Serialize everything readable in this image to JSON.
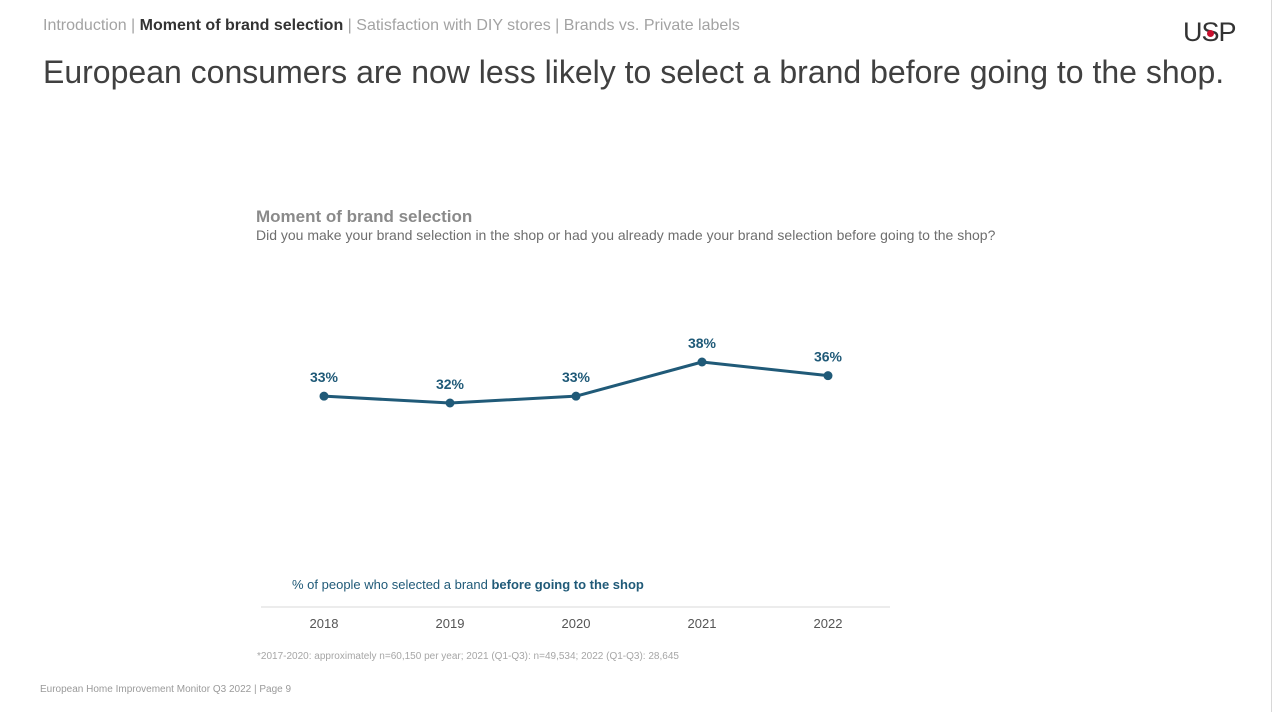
{
  "breadcrumb": {
    "items": [
      "Introduction",
      "Moment of brand selection",
      "Satisfaction with DIY stores",
      "Brands vs. Private labels"
    ],
    "separator": " | ",
    "active": "Moment of brand selection"
  },
  "logo": {
    "text_pre": "U",
    "text_s": "S",
    "text_post": "P",
    "dot_color": "#c8102e"
  },
  "headline": "European consumers are now less likely to select a brand before going to the shop.",
  "chart_data": {
    "type": "line",
    "title": "Moment of brand selection",
    "subtitle": "Did you make your brand selection in the shop or had you already made your brand selection before going to the shop?",
    "categories": [
      "2018",
      "2019",
      "2020",
      "2021",
      "2022"
    ],
    "series": [
      {
        "label_pre": "% of people who selected a brand ",
        "label_bold": "before going to the shop",
        "values": [
          33,
          32,
          33,
          38,
          36
        ],
        "labels": [
          "33%",
          "32%",
          "33%",
          "38%",
          "36%"
        ],
        "color": "#205a78"
      }
    ],
    "xlabel": "",
    "ylabel": "",
    "grid": false,
    "ylim": [
      32,
      38
    ]
  },
  "footnote": "*2017-2020: approximately n=60,150 per year; 2021 (Q1-Q3): n=49,534; 2022 (Q1-Q3): 28,645",
  "footer": "European Home Improvement Monitor Q3 2022 | Page 9"
}
